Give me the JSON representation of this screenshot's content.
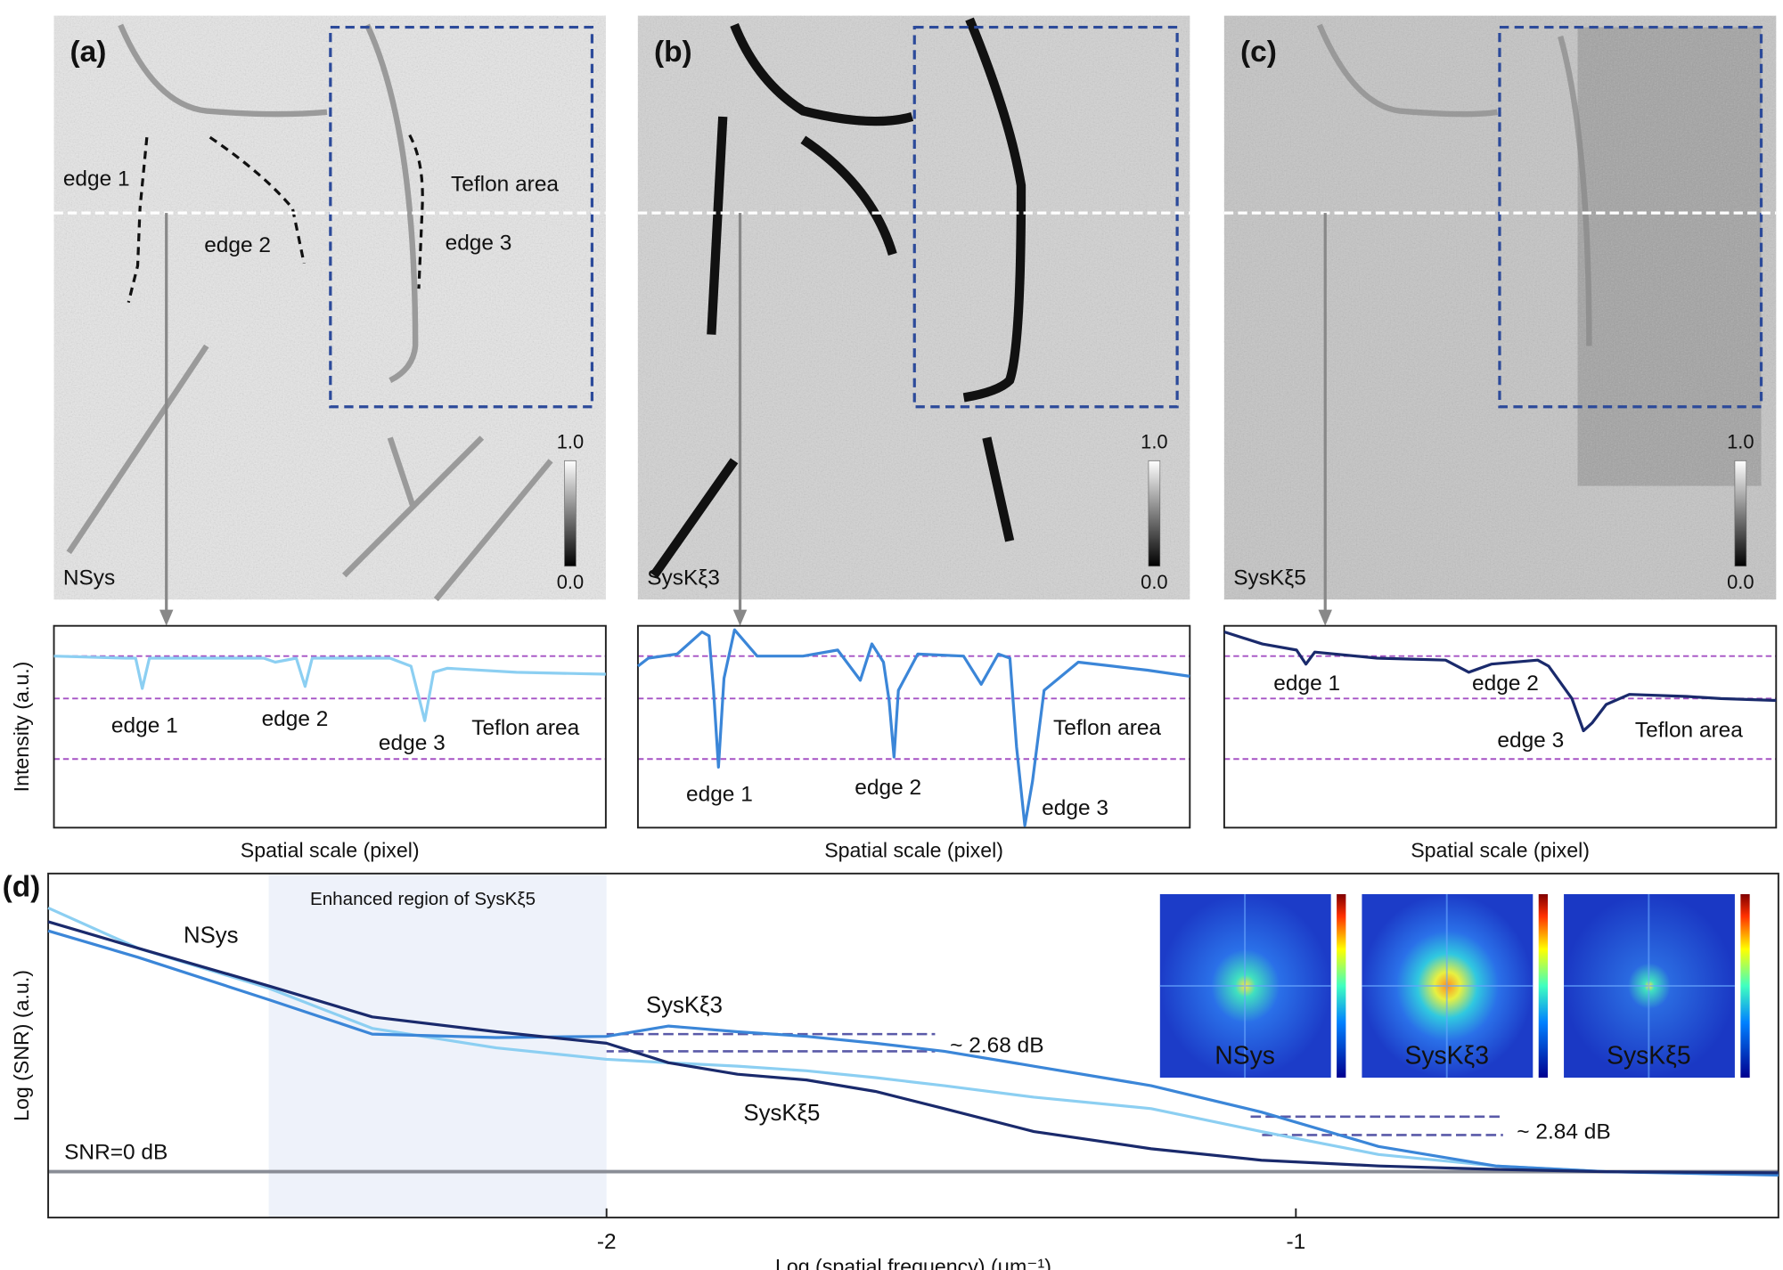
{
  "images": [
    {
      "label": "(a)",
      "name": "NSys",
      "annotations": [
        "edge 1",
        "edge 2",
        "edge 3",
        "Teflon area"
      ],
      "colorbar_ticks": [
        {
          "value": 1,
          "label": "1.0"
        },
        {
          "value": 0,
          "label": "0.0"
        }
      ]
    },
    {
      "label": "(b)",
      "name": "SysKξ3",
      "colorbar_ticks": [
        {
          "value": 1,
          "label": "1.0"
        },
        {
          "value": 0,
          "label": "0.0"
        }
      ]
    },
    {
      "label": "(c)",
      "name": "SysKξ5",
      "colorbar_ticks": [
        {
          "value": 1,
          "label": "1.0"
        },
        {
          "value": 0,
          "label": "0.0"
        }
      ]
    }
  ],
  "chart_data": [
    {
      "type": "line",
      "x_label": "Spatial scale (pixel)",
      "y_label": "Intensity (a.u.)",
      "xlim": [
        0,
        100
      ],
      "ylim": [
        0,
        1
      ],
      "reference_lines": [
        0.85,
        0.64,
        0.34
      ],
      "reference_color": "#a552c4",
      "x": [
        0,
        13.1,
        14.8,
        16.0,
        17.3,
        38.0,
        40.1,
        43.9,
        45.5,
        46.8,
        60.9,
        64.7,
        67.2,
        68.8,
        71.3,
        83.8,
        100
      ],
      "series": [
        {
          "color": "#8ccff2",
          "values": [
            0.85,
            0.84,
            0.84,
            0.69,
            0.84,
            0.84,
            0.82,
            0.84,
            0.7,
            0.84,
            0.84,
            0.8,
            0.53,
            0.77,
            0.79,
            0.77,
            0.76
          ]
        }
      ],
      "annotations": [
        "edge 1",
        "edge 2",
        "edge 3",
        "Teflon area"
      ]
    },
    {
      "type": "line",
      "x_label": "Spatial scale (pixel)",
      "xlim": [
        0,
        100
      ],
      "ylim": [
        0,
        1
      ],
      "reference_lines": [
        0.85,
        0.64,
        0.34
      ],
      "reference_color": "#a552c4",
      "x": [
        0,
        1.9,
        7.1,
        11.6,
        12.9,
        13.7,
        14.6,
        15.6,
        17.5,
        21.6,
        29.9,
        36.2,
        40.3,
        42.4,
        44.5,
        45.5,
        46.4,
        47.2,
        50.7,
        59.0,
        62.2,
        65.3,
        67.4,
        68.6,
        70.1,
        71.5,
        73.6,
        79.8,
        86.1,
        92.3,
        100
      ],
      "series": [
        {
          "color": "#3b86d8",
          "values": [
            0.8,
            0.84,
            0.86,
            0.97,
            0.95,
            0.68,
            0.3,
            0.74,
            0.98,
            0.85,
            0.85,
            0.88,
            0.73,
            0.91,
            0.82,
            0.63,
            0.35,
            0.68,
            0.86,
            0.85,
            0.71,
            0.86,
            0.84,
            0.4,
            0.01,
            0.23,
            0.68,
            0.82,
            0.8,
            0.78,
            0.75
          ]
        }
      ],
      "annotations": [
        "edge 1",
        "edge 2",
        "edge 3",
        "Teflon area"
      ]
    },
    {
      "type": "line",
      "x_label": "Spatial scale (pixel)",
      "xlim": [
        0,
        100
      ],
      "ylim": [
        0,
        1
      ],
      "reference_lines": [
        0.85,
        0.64,
        0.34
      ],
      "reference_color": "#a552c4",
      "x": [
        0,
        6.9,
        13.1,
        14.8,
        16.4,
        27.7,
        40.1,
        44.3,
        48.4,
        56.8,
        58.8,
        63.0,
        65.1,
        66.7,
        69.2,
        73.4,
        83.8,
        90.0,
        100
      ],
      "series": [
        {
          "color": "#1a2a6c",
          "values": [
            0.97,
            0.91,
            0.88,
            0.81,
            0.87,
            0.84,
            0.83,
            0.77,
            0.81,
            0.83,
            0.8,
            0.64,
            0.48,
            0.52,
            0.61,
            0.66,
            0.65,
            0.64,
            0.63
          ]
        }
      ],
      "annotations": [
        "edge 1",
        "edge 2",
        "edge 3",
        "Teflon area"
      ]
    },
    {
      "type": "line",
      "panel_label": "(d)",
      "x_label": "Log (spatial frequency) (μm⁻¹)",
      "y_label": "Log (SNR) (a.u.)",
      "xlim": [
        -2.81,
        -0.3
      ],
      "ylim": [
        -1.2,
        7.8
      ],
      "xticks": [
        -2,
        -1
      ],
      "shaded_region": {
        "x": [
          -2.49,
          -2
        ],
        "label": "Enhanced region of SysKξ5",
        "color": "#eef2fa"
      },
      "reference_line": {
        "value": 0,
        "label": "SNR=0 dB",
        "color": "#8a8d96"
      },
      "x": [
        -2.81,
        -2.68,
        -2.49,
        -2.34,
        -2.16,
        -2,
        -1.91,
        -1.81,
        -1.71,
        -1.61,
        -1.51,
        -1.38,
        -1.21,
        -1.05,
        -0.88,
        -0.71,
        -0.55,
        -0.3
      ],
      "series": [
        {
          "name": "NSys",
          "color": "#8ccff2",
          "values": [
            6.9,
            5.85,
            4.8,
            3.75,
            3.24,
            2.94,
            2.85,
            2.76,
            2.64,
            2.46,
            2.25,
            1.95,
            1.65,
            1.05,
            0.45,
            0.15,
            0,
            -0.06
          ]
        },
        {
          "name": "SysKξ3",
          "color": "#3b86d8",
          "values": [
            6.3,
            5.61,
            4.5,
            3.6,
            3.51,
            3.54,
            3.81,
            3.66,
            3.54,
            3.36,
            3.15,
            2.76,
            2.25,
            1.56,
            0.66,
            0.15,
            0,
            -0.09
          ]
        },
        {
          "name": "SysKξ5",
          "color": "#1a2a6c",
          "values": [
            6.54,
            5.85,
            4.86,
            4.05,
            3.66,
            3.36,
            2.85,
            2.55,
            2.4,
            2.1,
            1.65,
            1.05,
            0.6,
            0.3,
            0.15,
            0.06,
            0,
            -0.03
          ]
        }
      ],
      "annotations": [
        "~ 2.68 dB",
        "~ 2.84 dB"
      ],
      "insets": [
        {
          "label": "NSys"
        },
        {
          "label": "SysKξ3"
        },
        {
          "label": "SysKξ5"
        }
      ]
    }
  ]
}
